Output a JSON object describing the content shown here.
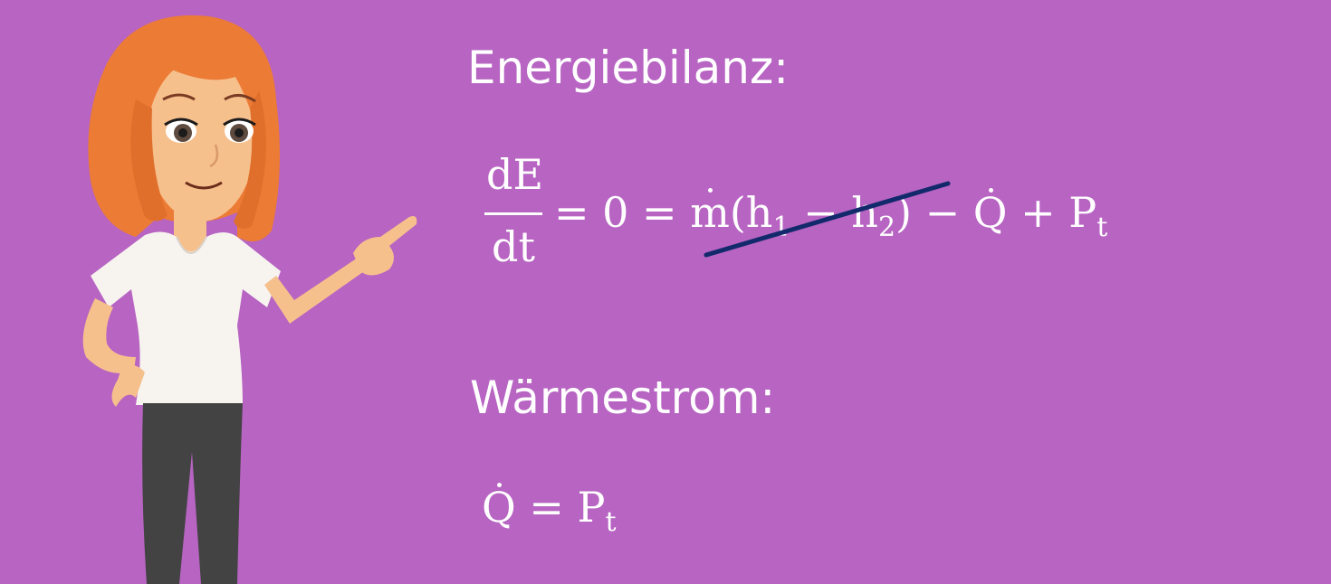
{
  "slide": {
    "energy_heading": "Energiebilanz:",
    "energy_equation": {
      "fraction_numerator": "dE",
      "fraction_denominator": "dt",
      "rhs_prefix": "= 0 = ",
      "mass_flow": "m",
      "paren_open": "(h",
      "h1_sub": "1",
      "minus_h": " − h",
      "h2_sub": "2",
      "paren_close": ") − ",
      "heat_symbol": "Q",
      "plus_p": " + P",
      "p_sub": "t"
    },
    "heat_heading": "Wärmestrom:",
    "heat_equation": {
      "heat_symbol": "Q",
      "equals_p": " = P",
      "p_sub": "t"
    }
  },
  "colors": {
    "background": "#b764c2",
    "text": "#ffffff",
    "strike": "#12296b",
    "hair": "#ec7b35",
    "skin": "#f6c08d",
    "shirt": "#f7f4f0",
    "pants": "#434343"
  }
}
